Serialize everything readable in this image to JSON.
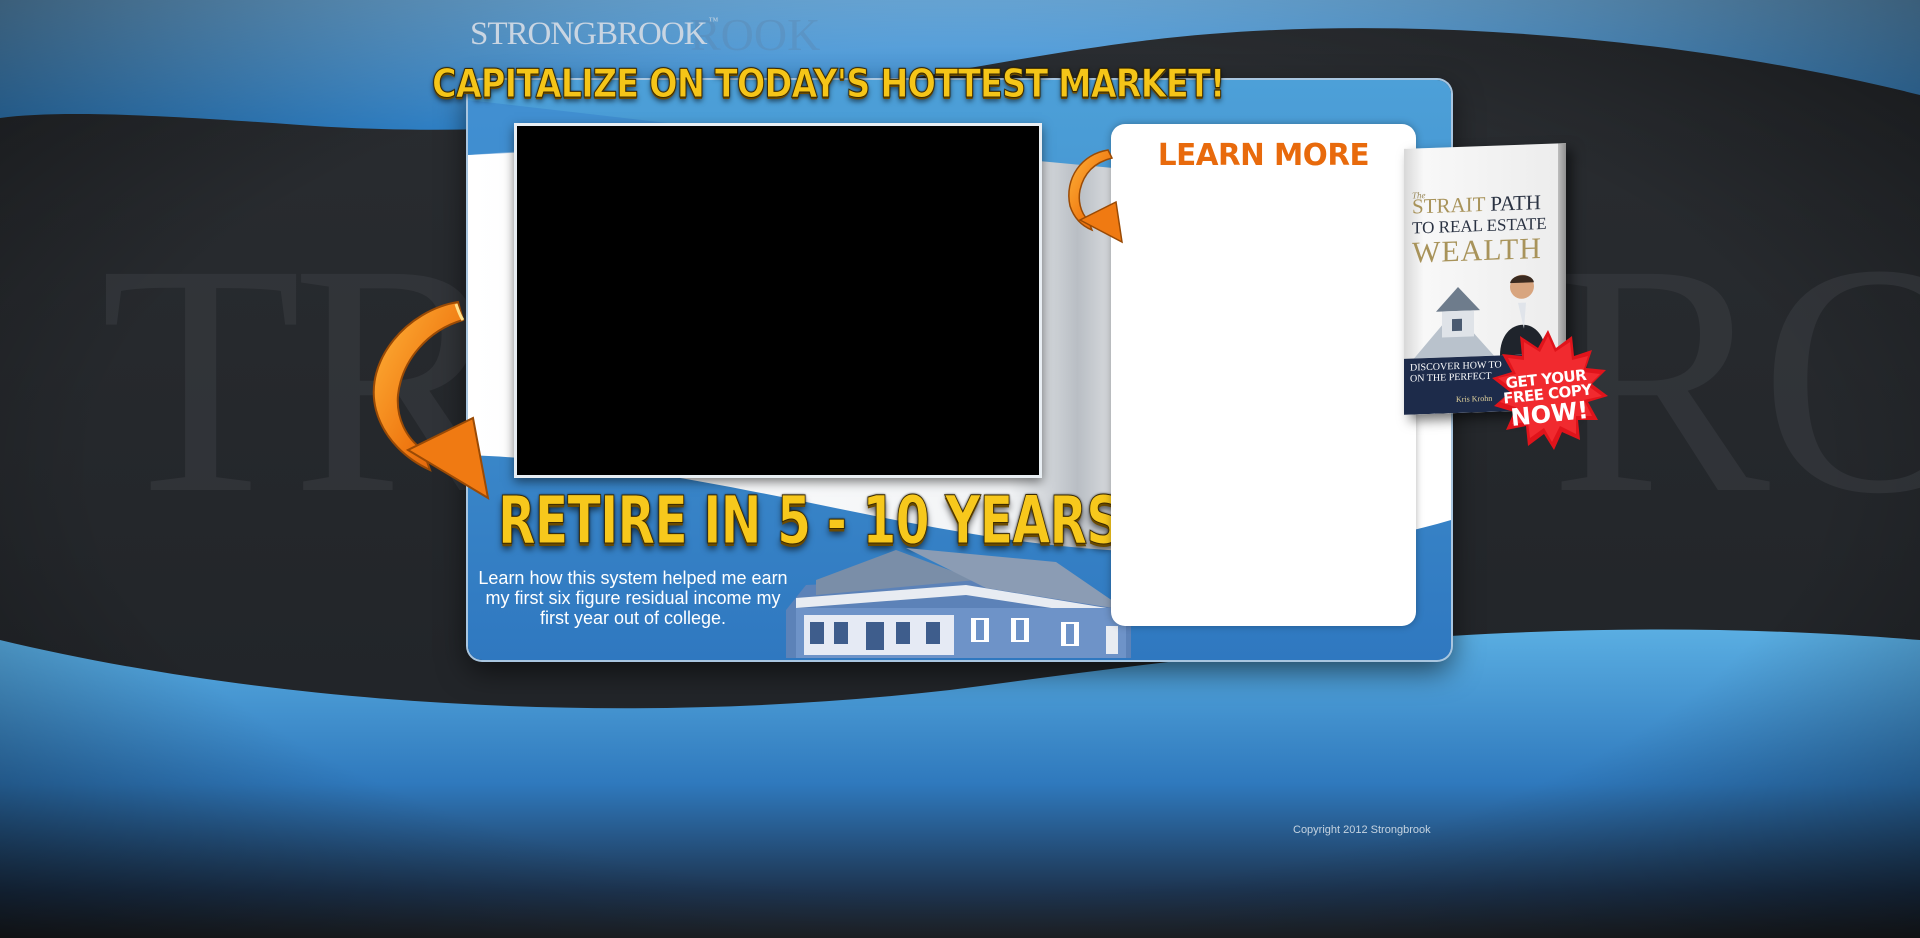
{
  "colors": {
    "background_dark": "#1f2226",
    "wave_blue": "#3d8fd0",
    "panel_blue": "#2f78c0",
    "headline_gold": "#f5c518",
    "learn_orange": "#e86a0c",
    "burst_red": "#e0141b"
  },
  "brand": {
    "logo_text": "STRONGBROOK",
    "logo_tm": "™",
    "watermark_left": "TR",
    "watermark_right": "RO",
    "watermark_top": "ROOK"
  },
  "hero": {
    "headline": "CAPITALIZE ON TODAY'S HOTTEST MARKET!",
    "subheadline": "RETIRE IN 5 - 10 YEARS",
    "blurb": "Learn how this system helped me earn my first six figure residual income my first year out of college."
  },
  "video": {
    "icon": "video-player"
  },
  "learn_more": {
    "title": "LEARN MORE"
  },
  "book": {
    "the": "The",
    "title_line1_a": "STRAIT",
    "title_line1_b": " PATH",
    "title_line2": "TO REAL ESTATE",
    "title_line3": "WEALTH",
    "band_text_1": "DISCOVER HOW TO",
    "band_text_2": "ON THE PERFECT",
    "author": "Kris Krohn"
  },
  "badge": {
    "line1": "GET YOUR",
    "line2": "FREE COPY",
    "line3": "NOW!"
  },
  "footer": {
    "copyright": "Copyright 2012 Strongbrook"
  },
  "icons": [
    "arrow-big-icon",
    "arrow-small-icon",
    "house-icon",
    "starburst-icon",
    "book-cover-icon"
  ]
}
